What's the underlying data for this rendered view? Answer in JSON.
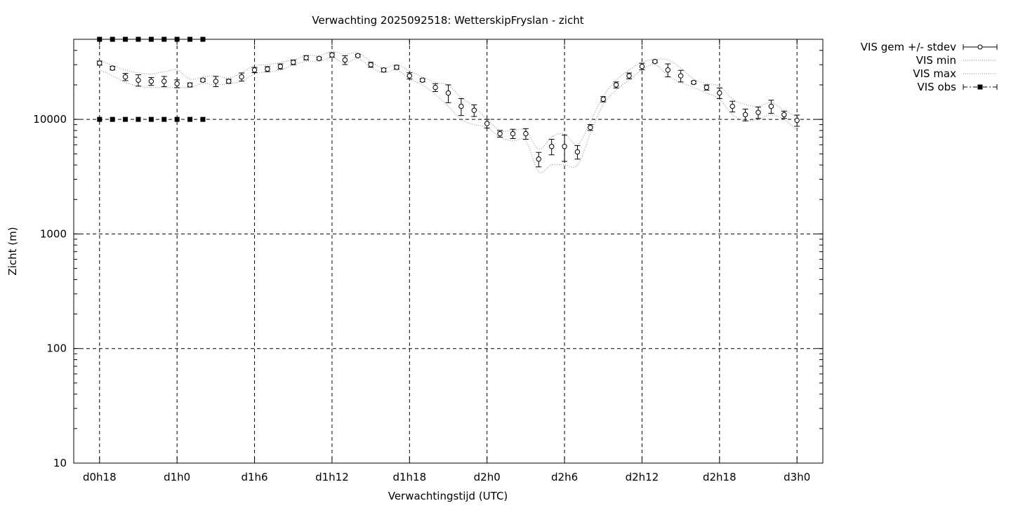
{
  "chart_data": {
    "type": "scatter",
    "title": "Verwachting 2025092518: WetterskipFryslan - zicht",
    "xlabel": "Verwachtingstijd (UTC)",
    "ylabel": "Zicht (m)",
    "x_unit": "hours",
    "xlim": [
      16,
      74
    ],
    "ylim": [
      10,
      50000
    ],
    "y_scale": "log",
    "grid": true,
    "legend_position": "top-right outside",
    "x_ticks": [
      {
        "x": 18,
        "label": "d0h18"
      },
      {
        "x": 24,
        "label": "d1h0"
      },
      {
        "x": 30,
        "label": "d1h6"
      },
      {
        "x": 36,
        "label": "d1h12"
      },
      {
        "x": 42,
        "label": "d1h18"
      },
      {
        "x": 48,
        "label": "d2h0"
      },
      {
        "x": 54,
        "label": "d2h6"
      },
      {
        "x": 60,
        "label": "d2h12"
      },
      {
        "x": 66,
        "label": "d2h18"
      },
      {
        "x": 72,
        "label": "d3h0"
      }
    ],
    "y_ticks": [
      {
        "y": 10,
        "label": "10"
      },
      {
        "y": 100,
        "label": "100"
      },
      {
        "y": 1000,
        "label": "1000"
      },
      {
        "y": 10000,
        "label": "10000"
      }
    ],
    "legend": [
      {
        "label": "VIS gem +/- stdev",
        "style": "errorbar-circle"
      },
      {
        "label": "VIS min",
        "style": "dotted"
      },
      {
        "label": "VIS max",
        "style": "dotted"
      },
      {
        "label": "VIS obs",
        "style": "square-dashdot"
      }
    ],
    "series": [
      {
        "name": "VIS gem +/- stdev",
        "x": [
          18,
          19,
          20,
          21,
          22,
          23,
          24,
          25,
          26,
          27,
          28,
          29,
          30,
          31,
          32,
          33,
          34,
          35,
          36,
          37,
          38,
          39,
          40,
          41,
          42,
          43,
          44,
          45,
          46,
          47,
          48,
          49,
          50,
          51,
          52,
          53,
          54,
          55,
          56,
          57,
          58,
          59,
          60,
          61,
          62,
          63,
          64,
          65,
          66,
          67,
          68,
          69,
          70,
          71,
          72
        ],
        "mean": [
          31000,
          28000,
          23500,
          22000,
          21500,
          21500,
          20500,
          20000,
          22000,
          21500,
          21500,
          23500,
          27000,
          27500,
          29000,
          31500,
          34500,
          34000,
          36500,
          33000,
          36000,
          30000,
          27000,
          28500,
          24000,
          22000,
          19000,
          17000,
          13000,
          12000,
          9200,
          7500,
          7500,
          7500,
          4500,
          5800,
          5800,
          5200,
          8500,
          15000,
          20000,
          24000,
          29000,
          32000,
          27000,
          24000,
          21000,
          19000,
          17000,
          13000,
          11000,
          11500,
          13000,
          11000,
          9800
        ],
        "stdev": [
          1300,
          1000,
          1700,
          2500,
          1700,
          2200,
          1600,
          800,
          700,
          2200,
          900,
          1900,
          1400,
          1400,
          1500,
          1500,
          1500,
          1000,
          1600,
          2900,
          1000,
          1500,
          1000,
          1100,
          1500,
          700,
          1500,
          3000,
          2200,
          1400,
          800,
          500,
          700,
          800,
          650,
          900,
          1500,
          700,
          500,
          800,
          1200,
          1400,
          1900,
          800,
          3500,
          2800,
          600,
          1000,
          1800,
          1400,
          1300,
          1300,
          1700,
          800,
          1100
        ]
      },
      {
        "name": "VIS min",
        "x": [
          18,
          19,
          20,
          21,
          22,
          23,
          24,
          25,
          26,
          27,
          28,
          29,
          30,
          31,
          32,
          33,
          34,
          35,
          36,
          37,
          38,
          39,
          40,
          41,
          42,
          43,
          44,
          45,
          46,
          47,
          48,
          49,
          50,
          51,
          52,
          53,
          54,
          55,
          56,
          57,
          58,
          59,
          60,
          61,
          62,
          63,
          64,
          65,
          66,
          67,
          68,
          69,
          70,
          71,
          72
        ],
        "values": [
          27000,
          24000,
          21000,
          19500,
          19000,
          19000,
          19000,
          19000,
          20500,
          20000,
          20500,
          21500,
          25000,
          26000,
          27000,
          30000,
          32000,
          32000,
          34500,
          31000,
          34000,
          28500,
          25500,
          27000,
          22500,
          20000,
          16500,
          13000,
          10000,
          9000,
          8500,
          7000,
          6500,
          6500,
          3500,
          4000,
          4000,
          4000,
          7500,
          13500,
          18000,
          22000,
          27000,
          30000,
          24000,
          21000,
          19000,
          17000,
          15000,
          11000,
          9800,
          10000,
          11000,
          10000,
          8000
        ]
      },
      {
        "name": "VIS max",
        "x": [
          18,
          19,
          20,
          21,
          22,
          23,
          24,
          25,
          26,
          27,
          28,
          29,
          30,
          31,
          32,
          33,
          34,
          35,
          36,
          37,
          38,
          39,
          40,
          41,
          42,
          43,
          44,
          45,
          46,
          47,
          48,
          49,
          50,
          51,
          52,
          53,
          54,
          55,
          56,
          57,
          58,
          59,
          60,
          61,
          62,
          63,
          64,
          65,
          66,
          67,
          68,
          69,
          70,
          71,
          72
        ],
        "values": [
          33000,
          29500,
          27000,
          25500,
          25000,
          26000,
          27000,
          22500,
          23500,
          24000,
          23000,
          25500,
          29500,
          30000,
          31500,
          33000,
          36000,
          36000,
          39000,
          37000,
          38000,
          32000,
          28000,
          30000,
          26500,
          23500,
          21000,
          20000,
          15500,
          13000,
          10000,
          8000,
          8000,
          8000,
          5500,
          7000,
          7500,
          6000,
          9500,
          16000,
          22000,
          27000,
          31500,
          33500,
          33000,
          28000,
          22500,
          20500,
          19500,
          15000,
          13500,
          13000,
          14000,
          12000,
          10500
        ]
      },
      {
        "name": "VIS obs",
        "x": [
          18,
          19,
          20,
          21,
          22,
          23,
          24,
          25,
          26
        ],
        "upper": [
          50000,
          50000,
          50000,
          50000,
          50000,
          50000,
          50000,
          50000,
          50000
        ],
        "lower": [
          10000,
          10000,
          10000,
          10000,
          10000,
          10000,
          10000,
          10000,
          10000
        ]
      }
    ]
  }
}
